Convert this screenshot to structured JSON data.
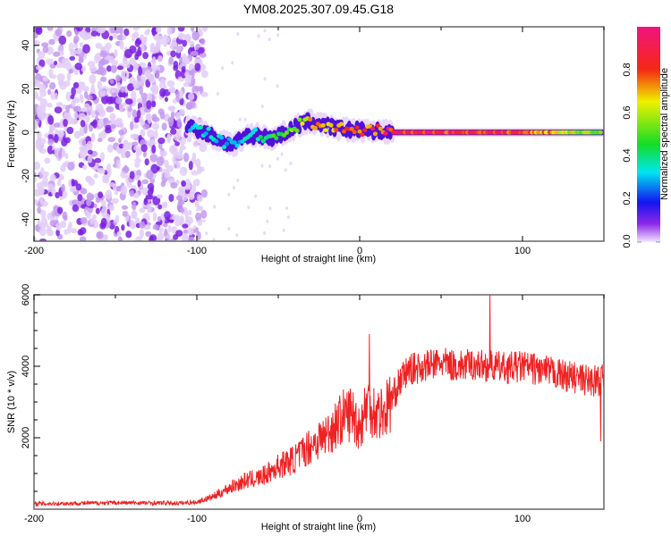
{
  "chart_data": [
    {
      "type": "heatmap",
      "title": "YM08.2025.307.09.45.G18",
      "xlabel": "Height of straight line (km)",
      "ylabel": "Frequency (Hz)",
      "xlim": [
        -200,
        150
      ],
      "ylim": [
        -50,
        48.5
      ],
      "xticks": [
        "-200",
        "-100",
        "0",
        "100"
      ],
      "xtick_values": [
        -200,
        -100,
        0,
        100
      ],
      "yticks": [
        "-40",
        "-20",
        "0",
        "20",
        "40"
      ],
      "ytick_values": [
        -40,
        -20,
        0,
        20,
        40
      ],
      "colorbar": {
        "label": "Normalized spectral amplitude",
        "ticks": [
          "0.0",
          "0.2",
          "0.4",
          "0.6",
          "0.8"
        ],
        "tick_values": [
          0,
          0.2,
          0.4,
          0.6,
          0.8
        ],
        "range": [
          0,
          1
        ]
      },
      "noise_region_x": [
        -200,
        -100
      ],
      "ridge": {
        "x": [
          -105,
          -95,
          -85,
          -78,
          -70,
          -62,
          -55,
          -45,
          -38,
          -32,
          -25,
          -15,
          -5,
          5,
          20,
          60,
          100,
          150
        ],
        "freq": [
          3,
          0,
          -4,
          -6,
          -2,
          -1,
          -3,
          0,
          3,
          5,
          4,
          2,
          1,
          1,
          0,
          0,
          0,
          0
        ],
        "amplitude": [
          0.3,
          0.35,
          0.35,
          0.3,
          0.35,
          0.4,
          0.45,
          0.5,
          0.6,
          0.7,
          0.7,
          0.75,
          0.8,
          0.85,
          0.9,
          0.9,
          0.85,
          0.5
        ]
      }
    },
    {
      "type": "line",
      "xlabel": "Height of straight line (km)",
      "ylabel": "SNR (10 * v/v)",
      "xlim": [
        -200,
        150
      ],
      "ylim": [
        0,
        6000
      ],
      "xticks": [
        "-200",
        "-100",
        "0",
        "100"
      ],
      "xtick_values": [
        -200,
        -100,
        0,
        100
      ],
      "yticks": [
        "2000",
        "4000",
        "6000"
      ],
      "ytick_values": [
        2000,
        4000,
        6000
      ],
      "series": [
        {
          "name": "SNR",
          "color": "#ee2222",
          "x": [
            -200,
            -150,
            -110,
            -100,
            -90,
            -80,
            -70,
            -60,
            -50,
            -40,
            -30,
            -20,
            -10,
            -5,
            0,
            5,
            10,
            15,
            20,
            25,
            30,
            40,
            50,
            60,
            70,
            80,
            90,
            100,
            110,
            120,
            130,
            140,
            150
          ],
          "y": [
            150,
            180,
            170,
            200,
            350,
            600,
            800,
            900,
            1200,
            1400,
            1800,
            2100,
            2600,
            2700,
            2300,
            3000,
            2700,
            2700,
            3100,
            3600,
            3900,
            4000,
            4100,
            4000,
            4050,
            4000,
            3950,
            4000,
            3900,
            3800,
            3700,
            3600,
            3600
          ],
          "spikes": [
            {
              "x": 80,
              "y": 6000
            },
            {
              "x": 148,
              "y": 1900
            },
            {
              "x": 6,
              "y": 4900
            }
          ]
        }
      ]
    }
  ]
}
